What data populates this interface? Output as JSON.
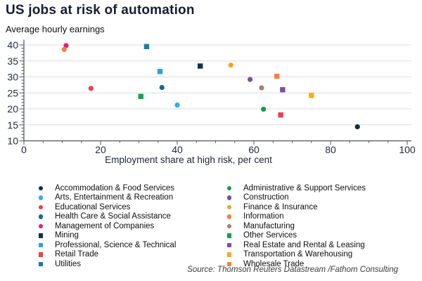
{
  "header": {
    "title": "US jobs at risk of automation",
    "subtitle": "Average hourly earnings"
  },
  "source": "Source: Thomson Reuters Datastream /Fathom Consulting",
  "colors": {
    "title_text": "#161d33",
    "axis": "#4d545e",
    "gridline": "#d9dcdf",
    "tick_label": "#1f2840"
  },
  "chart_data": {
    "type": "scatter",
    "title": "US jobs at risk of automation",
    "ylabel": "Average hourly earnings",
    "xlabel": "Employment share at high risk, per cent",
    "xlim": [
      0,
      100
    ],
    "ylim": [
      10,
      40
    ],
    "x_ticks": [
      0,
      20,
      40,
      60,
      80,
      100
    ],
    "y_ticks": [
      10,
      15,
      20,
      25,
      30,
      35,
      40
    ],
    "x_minor_tick_step": 5,
    "y_minor_tick_step": 1,
    "grid": "horizontal-only",
    "legend": {
      "position": "bottom",
      "columns": 2,
      "split_index": 9
    },
    "series": [
      {
        "name": "Accommodation & Food Services",
        "marker": "circle",
        "color": "#0f2e40",
        "x": 87,
        "y": 14.4
      },
      {
        "name": "Arts, Entertainment & Recreation",
        "marker": "circle",
        "color": "#2cb0e8",
        "x": 40,
        "y": 21.2
      },
      {
        "name": "Educational Services",
        "marker": "circle",
        "color": "#f23c4c",
        "x": 17.5,
        "y": 26.4
      },
      {
        "name": "Health Care & Social Assistance",
        "marker": "circle",
        "color": "#0e6b94",
        "x": 36,
        "y": 26.7
      },
      {
        "name": "Management of Companies",
        "marker": "circle",
        "color": "#e8197d",
        "x": 11,
        "y": 39.8
      },
      {
        "name": "Mining",
        "marker": "square",
        "color": "#142f4b",
        "x": 46,
        "y": 33.4
      },
      {
        "name": "Professional, Science & Technical",
        "marker": "square",
        "color": "#29a3dc",
        "x": 35.5,
        "y": 31.7
      },
      {
        "name": "Retail Trade",
        "marker": "square",
        "color": "#f23c4c",
        "x": 67,
        "y": 18.1
      },
      {
        "name": "Utilities",
        "marker": "square",
        "color": "#167fa4",
        "x": 32,
        "y": 39.5
      },
      {
        "name": "Administrative & Support Services",
        "marker": "circle",
        "color": "#0fa14e",
        "x": 62.5,
        "y": 19.9
      },
      {
        "name": "Construction",
        "marker": "circle",
        "color": "#7a50a0",
        "x": 59,
        "y": 29.2
      },
      {
        "name": "Finance & Insurance",
        "marker": "circle",
        "color": "#f0a51f",
        "x": 54,
        "y": 33.7
      },
      {
        "name": "Information",
        "marker": "circle",
        "color": "#f5803e",
        "x": 10.5,
        "y": 38.6
      },
      {
        "name": "Manufacturing",
        "marker": "circle",
        "color": "#a67f70",
        "x": 62,
        "y": 26.6
      },
      {
        "name": "Other Services",
        "marker": "square",
        "color": "#13a24f",
        "x": 30.5,
        "y": 23.9
      },
      {
        "name": "Real Estate and Rental & Leasing",
        "marker": "square",
        "color": "#7a50a0",
        "x": 67.5,
        "y": 26.0
      },
      {
        "name": "Transportation & Warehousing",
        "marker": "square",
        "color": "#f6ac1d",
        "x": 75,
        "y": 24.2
      },
      {
        "name": "Wholesale Trade",
        "marker": "square",
        "color": "#f5803e",
        "x": 66,
        "y": 30.2
      }
    ]
  }
}
